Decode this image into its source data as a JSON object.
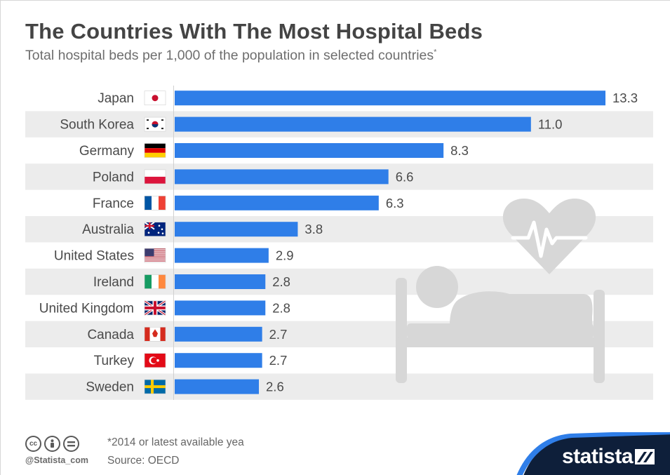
{
  "title": "The Countries With The Most Hospital Beds",
  "subtitle": "Total hospital beds per 1,000 of the population in selected countries",
  "subtitle_mark": "*",
  "footer": {
    "note": "*2014 or latest available yea",
    "source": "Source: OECD",
    "handle": "@Statista_com",
    "brand": "statista"
  },
  "icons": {
    "cc": "creative-commons-icon",
    "by": "attribution-icon",
    "nd": "no-derivatives-icon",
    "decoration": "hospital-bed-heart-icon",
    "brand_mark": "statista-logo-icon"
  },
  "colors": {
    "bar": "#2f7ee8",
    "band": "#ececec",
    "decoration": "#d7d7d7",
    "brand_bg": "#0e1f3a",
    "brand_accent": "#2f7ee8"
  },
  "chart_data": {
    "type": "bar",
    "orientation": "horizontal",
    "categories": [
      "Japan",
      "South Korea",
      "Germany",
      "Poland",
      "France",
      "Australia",
      "United States",
      "Ireland",
      "United Kingdom",
      "Canada",
      "Turkey",
      "Sweden"
    ],
    "values": [
      13.3,
      11.0,
      8.3,
      6.6,
      6.3,
      3.8,
      2.9,
      2.8,
      2.8,
      2.7,
      2.7,
      2.6
    ],
    "value_labels": [
      "13.3",
      "11.0",
      "8.3",
      "6.6",
      "6.3",
      "3.8",
      "2.9",
      "2.8",
      "2.8",
      "2.7",
      "2.7",
      "2.6"
    ],
    "flags": [
      "jp",
      "kr",
      "de",
      "pl",
      "fr",
      "au",
      "us",
      "ie",
      "gb",
      "ca",
      "tr",
      "se"
    ],
    "xlim": [
      0,
      13.3
    ],
    "grid": false,
    "legend": "none"
  }
}
